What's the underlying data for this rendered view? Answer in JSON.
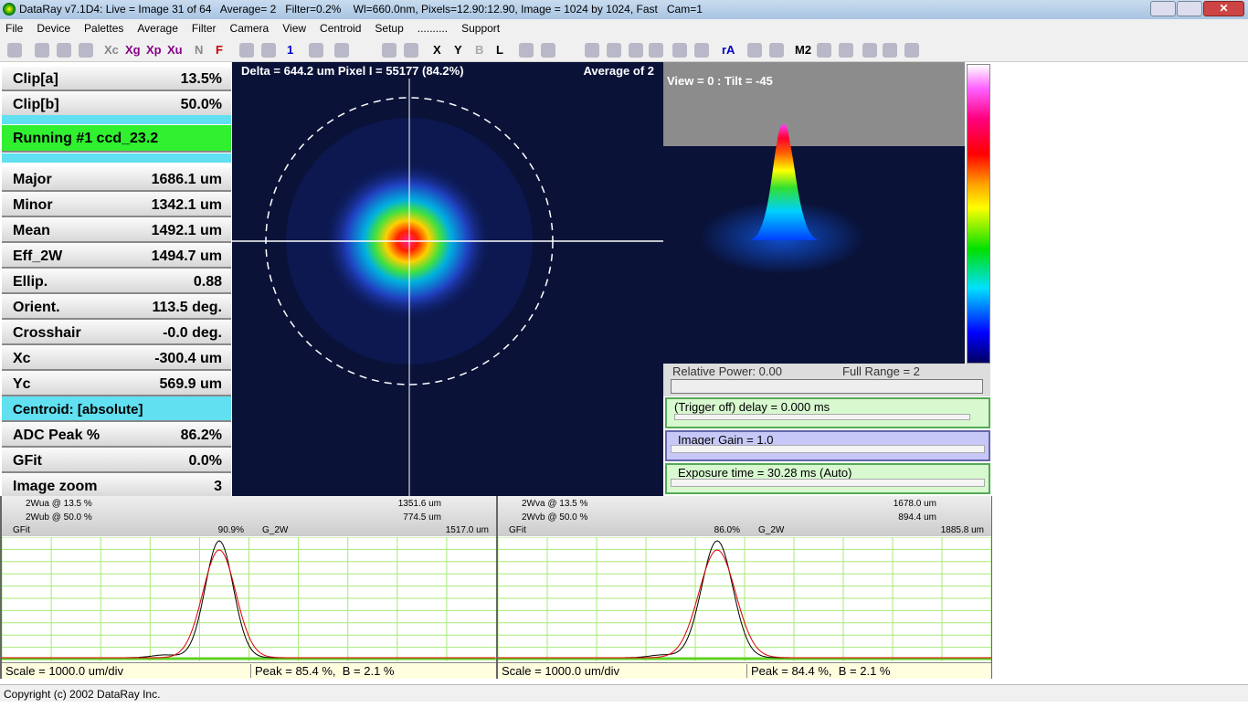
{
  "window": {
    "title": "DataRay v7.1D4: Live = Image 31 of 64   Average= 2   Filter=0.2%    Wl=660.0nm, Pixels=12.90:12.90, Image = 1024 by 1024, Fast   Cam=1"
  },
  "menu": [
    "File",
    "Device",
    "Palettes",
    "Average",
    "Filter",
    "Camera",
    "View",
    "Centroid",
    "Setup",
    "..........",
    "Support"
  ],
  "toolbar": [
    "Xc",
    "Xg",
    "Xp",
    "Xu",
    "N",
    "F",
    "1",
    "X",
    "Y",
    "B",
    "L",
    "rA",
    "M2"
  ],
  "left_panel": {
    "clip": [
      {
        "label": "Clip[a]",
        "value": "13.5%"
      },
      {
        "label": "Clip[b]",
        "value": "50.0%"
      }
    ],
    "running": "Running #1 ccd_23.2",
    "stats": [
      {
        "label": "Major",
        "value": "1686.1 um"
      },
      {
        "label": "Minor",
        "value": "1342.1 um"
      },
      {
        "label": "Mean",
        "value": "1492.1 um"
      },
      {
        "label": "Eff_2W",
        "value": "1494.7 um"
      },
      {
        "label": "Ellip.",
        "value": "0.88"
      },
      {
        "label": "Orient.",
        "value": "113.5 deg."
      },
      {
        "label": "Crosshair",
        "value": "-0.0 deg."
      },
      {
        "label": "Xc",
        "value": "-300.4 um"
      },
      {
        "label": "Yc",
        "value": "569.9 um"
      }
    ],
    "centroid": "Centroid: [absolute]",
    "extra": [
      {
        "label": "ADC Peak %",
        "value": "86.2%"
      },
      {
        "label": "GFit",
        "value": "0.0%"
      },
      {
        "label": "Image zoom",
        "value": "3"
      }
    ]
  },
  "image": {
    "header": "Delta = 644.2 um Pixel I = 55177 (84.2%)",
    "average": "Average of 2"
  },
  "view3d": {
    "label": "View = 0 : Tilt = -45"
  },
  "controls": {
    "relative_power": "Relative Power: 0.00",
    "full_range": "Full Range = 2",
    "trigger": "(Trigger off) delay = 0.000 ms",
    "gain": "Imager Gain = 1.0",
    "exposure": "Exposure time = 30.28 ms (Auto)"
  },
  "profiles": [
    {
      "wa_label": "2Wua @ 13.5 %",
      "wa_value": "1351.6 um",
      "wb_label": "2Wub @ 50.0 %",
      "wb_value": "774.5 um",
      "gfit_label": "GFit",
      "gfit_value": "90.9%",
      "g2w_label": "G_2W",
      "g2w_value": "1517.0 um",
      "scale": "Scale = 1000.0 um/div",
      "peak": "Peak = 85.4 %,  B = 2.1 %"
    },
    {
      "wa_label": "2Wva @ 13.5 %",
      "wa_value": "1678.0 um",
      "wb_label": "2Wvb @ 50.0 %",
      "wb_value": "894.4 um",
      "gfit_label": "GFit",
      "gfit_value": "86.0%",
      "g2w_label": "G_2W",
      "g2w_value": "1885.8 um",
      "scale": "Scale = 1000.0 um/div",
      "peak": "Peak = 84.4 %,  B = 2.1 %"
    }
  ],
  "status": "Copyright (c) 2002 DataRay Inc."
}
